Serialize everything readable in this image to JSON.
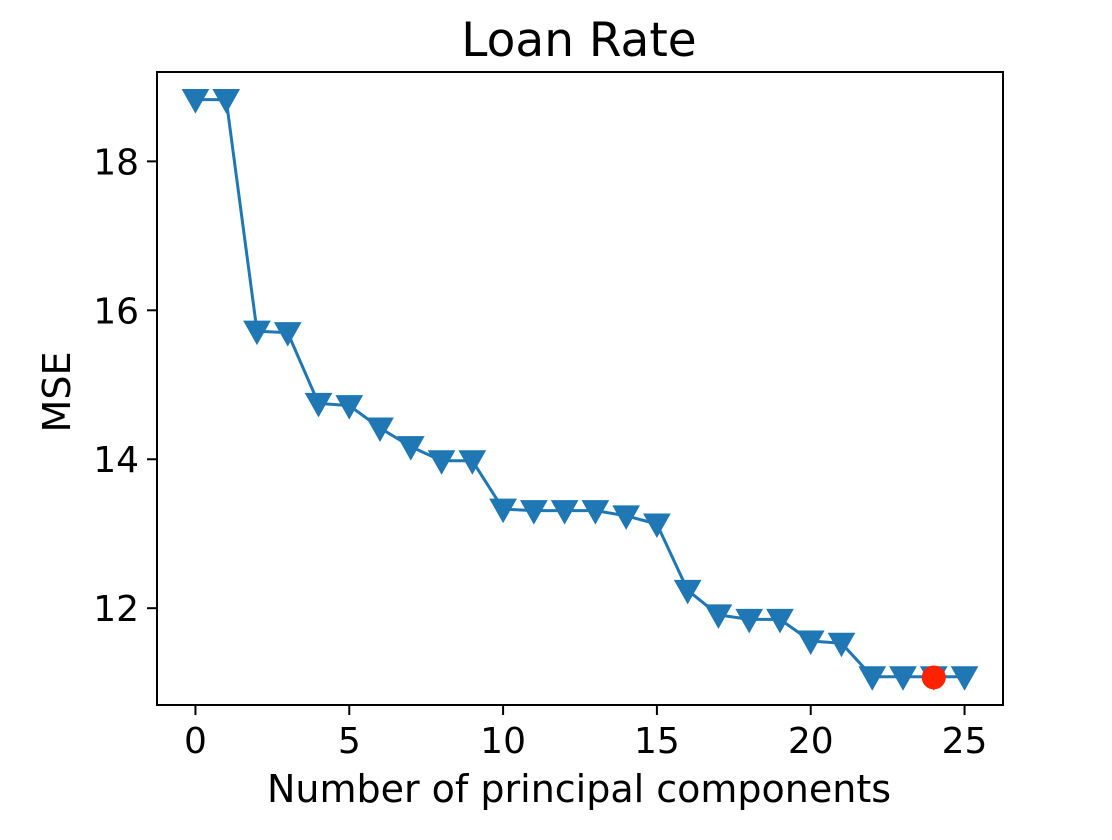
{
  "chart_data": {
    "type": "line",
    "title": "Loan Rate",
    "xlabel": "Number of principal components",
    "ylabel": "MSE",
    "xlim": [
      -1.25,
      26.25
    ],
    "ylim": [
      10.7,
      19.2
    ],
    "xticks": [
      0,
      5,
      10,
      15,
      20,
      25
    ],
    "yticks": [
      12,
      14,
      16,
      18
    ],
    "grid": false,
    "series": [
      {
        "color": "#1f77b4",
        "marker": "triangle-down",
        "x": [
          0,
          1,
          2,
          3,
          4,
          5,
          6,
          7,
          8,
          9,
          10,
          11,
          12,
          13,
          14,
          15,
          16,
          17,
          18,
          19,
          20,
          21,
          22,
          23,
          24,
          25
        ],
        "y": [
          18.83,
          18.83,
          15.72,
          15.7,
          14.75,
          14.72,
          14.42,
          14.17,
          13.98,
          13.98,
          13.33,
          13.31,
          13.31,
          13.31,
          13.24,
          13.13,
          12.24,
          11.91,
          11.85,
          11.85,
          11.56,
          11.53,
          11.08,
          11.08,
          11.08,
          11.08
        ]
      }
    ],
    "highlight": {
      "x": 24,
      "y": 11.07,
      "color": "#ff2200",
      "marker": "circle"
    }
  }
}
